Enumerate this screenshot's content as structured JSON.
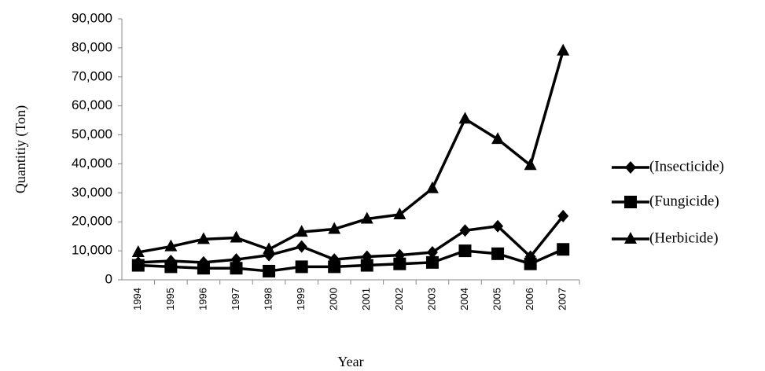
{
  "chart_data": {
    "type": "line",
    "y_label": "Quantitiy (Ton)",
    "x_label": "Year",
    "categories": [
      "1994",
      "1995",
      "1996",
      "1997",
      "1998",
      "1999",
      "2000",
      "2001",
      "2002",
      "2003",
      "2004",
      "2005",
      "2006",
      "2007"
    ],
    "series": [
      {
        "name": "(Insecticide)",
        "color": "#000000",
        "marker": "diamond",
        "values": [
          6000,
          6500,
          6000,
          7000,
          8500,
          11500,
          7000,
          8000,
          8500,
          9500,
          17000,
          18500,
          8000,
          22000
        ]
      },
      {
        "name": "(Fungicide)",
        "color": "#000000",
        "marker": "square",
        "values": [
          5000,
          4500,
          4000,
          4000,
          3000,
          4500,
          4500,
          5000,
          5500,
          6000,
          10000,
          9000,
          5500,
          10500
        ]
      },
      {
        "name": "(Herbicide)",
        "color": "#000000",
        "marker": "triangle",
        "values": [
          9500,
          11500,
          14000,
          14500,
          10500,
          16500,
          17500,
          21000,
          22500,
          31500,
          55500,
          48500,
          39500,
          79000
        ]
      }
    ],
    "ylim": [
      0,
      90000
    ],
    "yticks": [
      0,
      {
        "value": 10000,
        "label": "10,000"
      },
      {
        "value": 20000,
        "label": "20,000"
      },
      {
        "value": 30000,
        "label": "30,000"
      },
      {
        "value": 40000,
        "label": "40,000"
      },
      {
        "value": 50000,
        "label": "50,000"
      },
      {
        "value": 60000,
        "label": "60,000"
      },
      {
        "value": 70000,
        "label": "70,000"
      },
      {
        "value": 80000,
        "label": "80,000"
      },
      {
        "value": 90000,
        "label": "90,000"
      }
    ],
    "grid": false,
    "legend": "right"
  }
}
